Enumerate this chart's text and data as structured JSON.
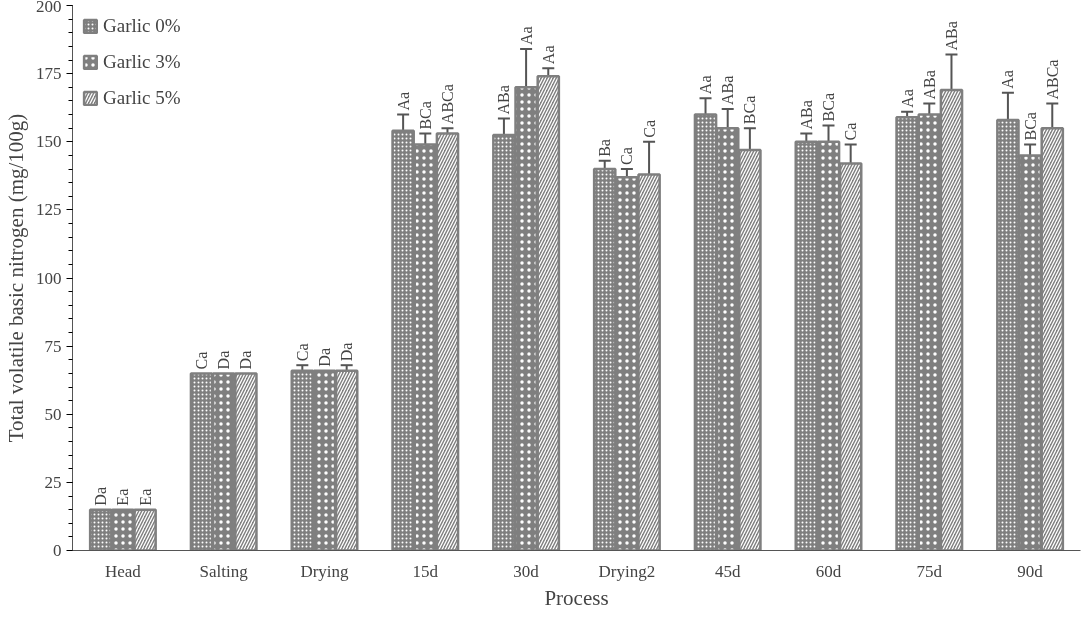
{
  "chart_data": {
    "type": "bar",
    "xlabel": "Process",
    "ylabel": "Total volatile basic nitrogen (mg/100g)",
    "categories": [
      "Head",
      "Salting",
      "Drying",
      "15d",
      "30d",
      "Drying2",
      "45d",
      "60d",
      "75d",
      "90d"
    ],
    "series": [
      {
        "name": "Garlic 0%",
        "color": "#7f7f7f",
        "values": [
          15,
          65,
          66,
          154,
          152.5,
          140,
          160,
          150,
          159,
          158
        ],
        "errors": [
          null,
          null,
          2,
          6,
          6,
          3,
          6,
          3,
          2,
          10
        ],
        "value_labels": [
          "Da",
          "Ca",
          "Ca",
          "Aa",
          "ABa",
          "Ba",
          "Aa",
          "ABa",
          "Aa",
          "Aa"
        ]
      },
      {
        "name": "Garlic 3%",
        "color": "#7f7f7f",
        "values": [
          15,
          65,
          66,
          149,
          170,
          137,
          155,
          150,
          160,
          145
        ],
        "errors": [
          null,
          null,
          null,
          4,
          14,
          3,
          7,
          6,
          4,
          4
        ],
        "value_labels": [
          "Ea",
          "Da",
          "Da",
          "BCa",
          "Aa",
          "Ca",
          "ABa",
          "BCa",
          "ABa",
          "BCa"
        ]
      },
      {
        "name": "Garlic 5%",
        "color": "#7f7f7f",
        "values": [
          15,
          65,
          66,
          153,
          174,
          138,
          147,
          142,
          169,
          155
        ],
        "errors": [
          null,
          null,
          2,
          2,
          3,
          12,
          8,
          7,
          13,
          9
        ],
        "value_labels": [
          "Ea",
          "Da",
          "Da",
          "ABCa",
          "Aa",
          "Ca",
          "BCa",
          "Ca",
          "ABa",
          "ABCa"
        ]
      }
    ],
    "ylim": [
      0,
      200
    ],
    "yticks": [
      0,
      25,
      50,
      75,
      100,
      125,
      150,
      175,
      200
    ],
    "grid": false,
    "legend": "top left"
  }
}
